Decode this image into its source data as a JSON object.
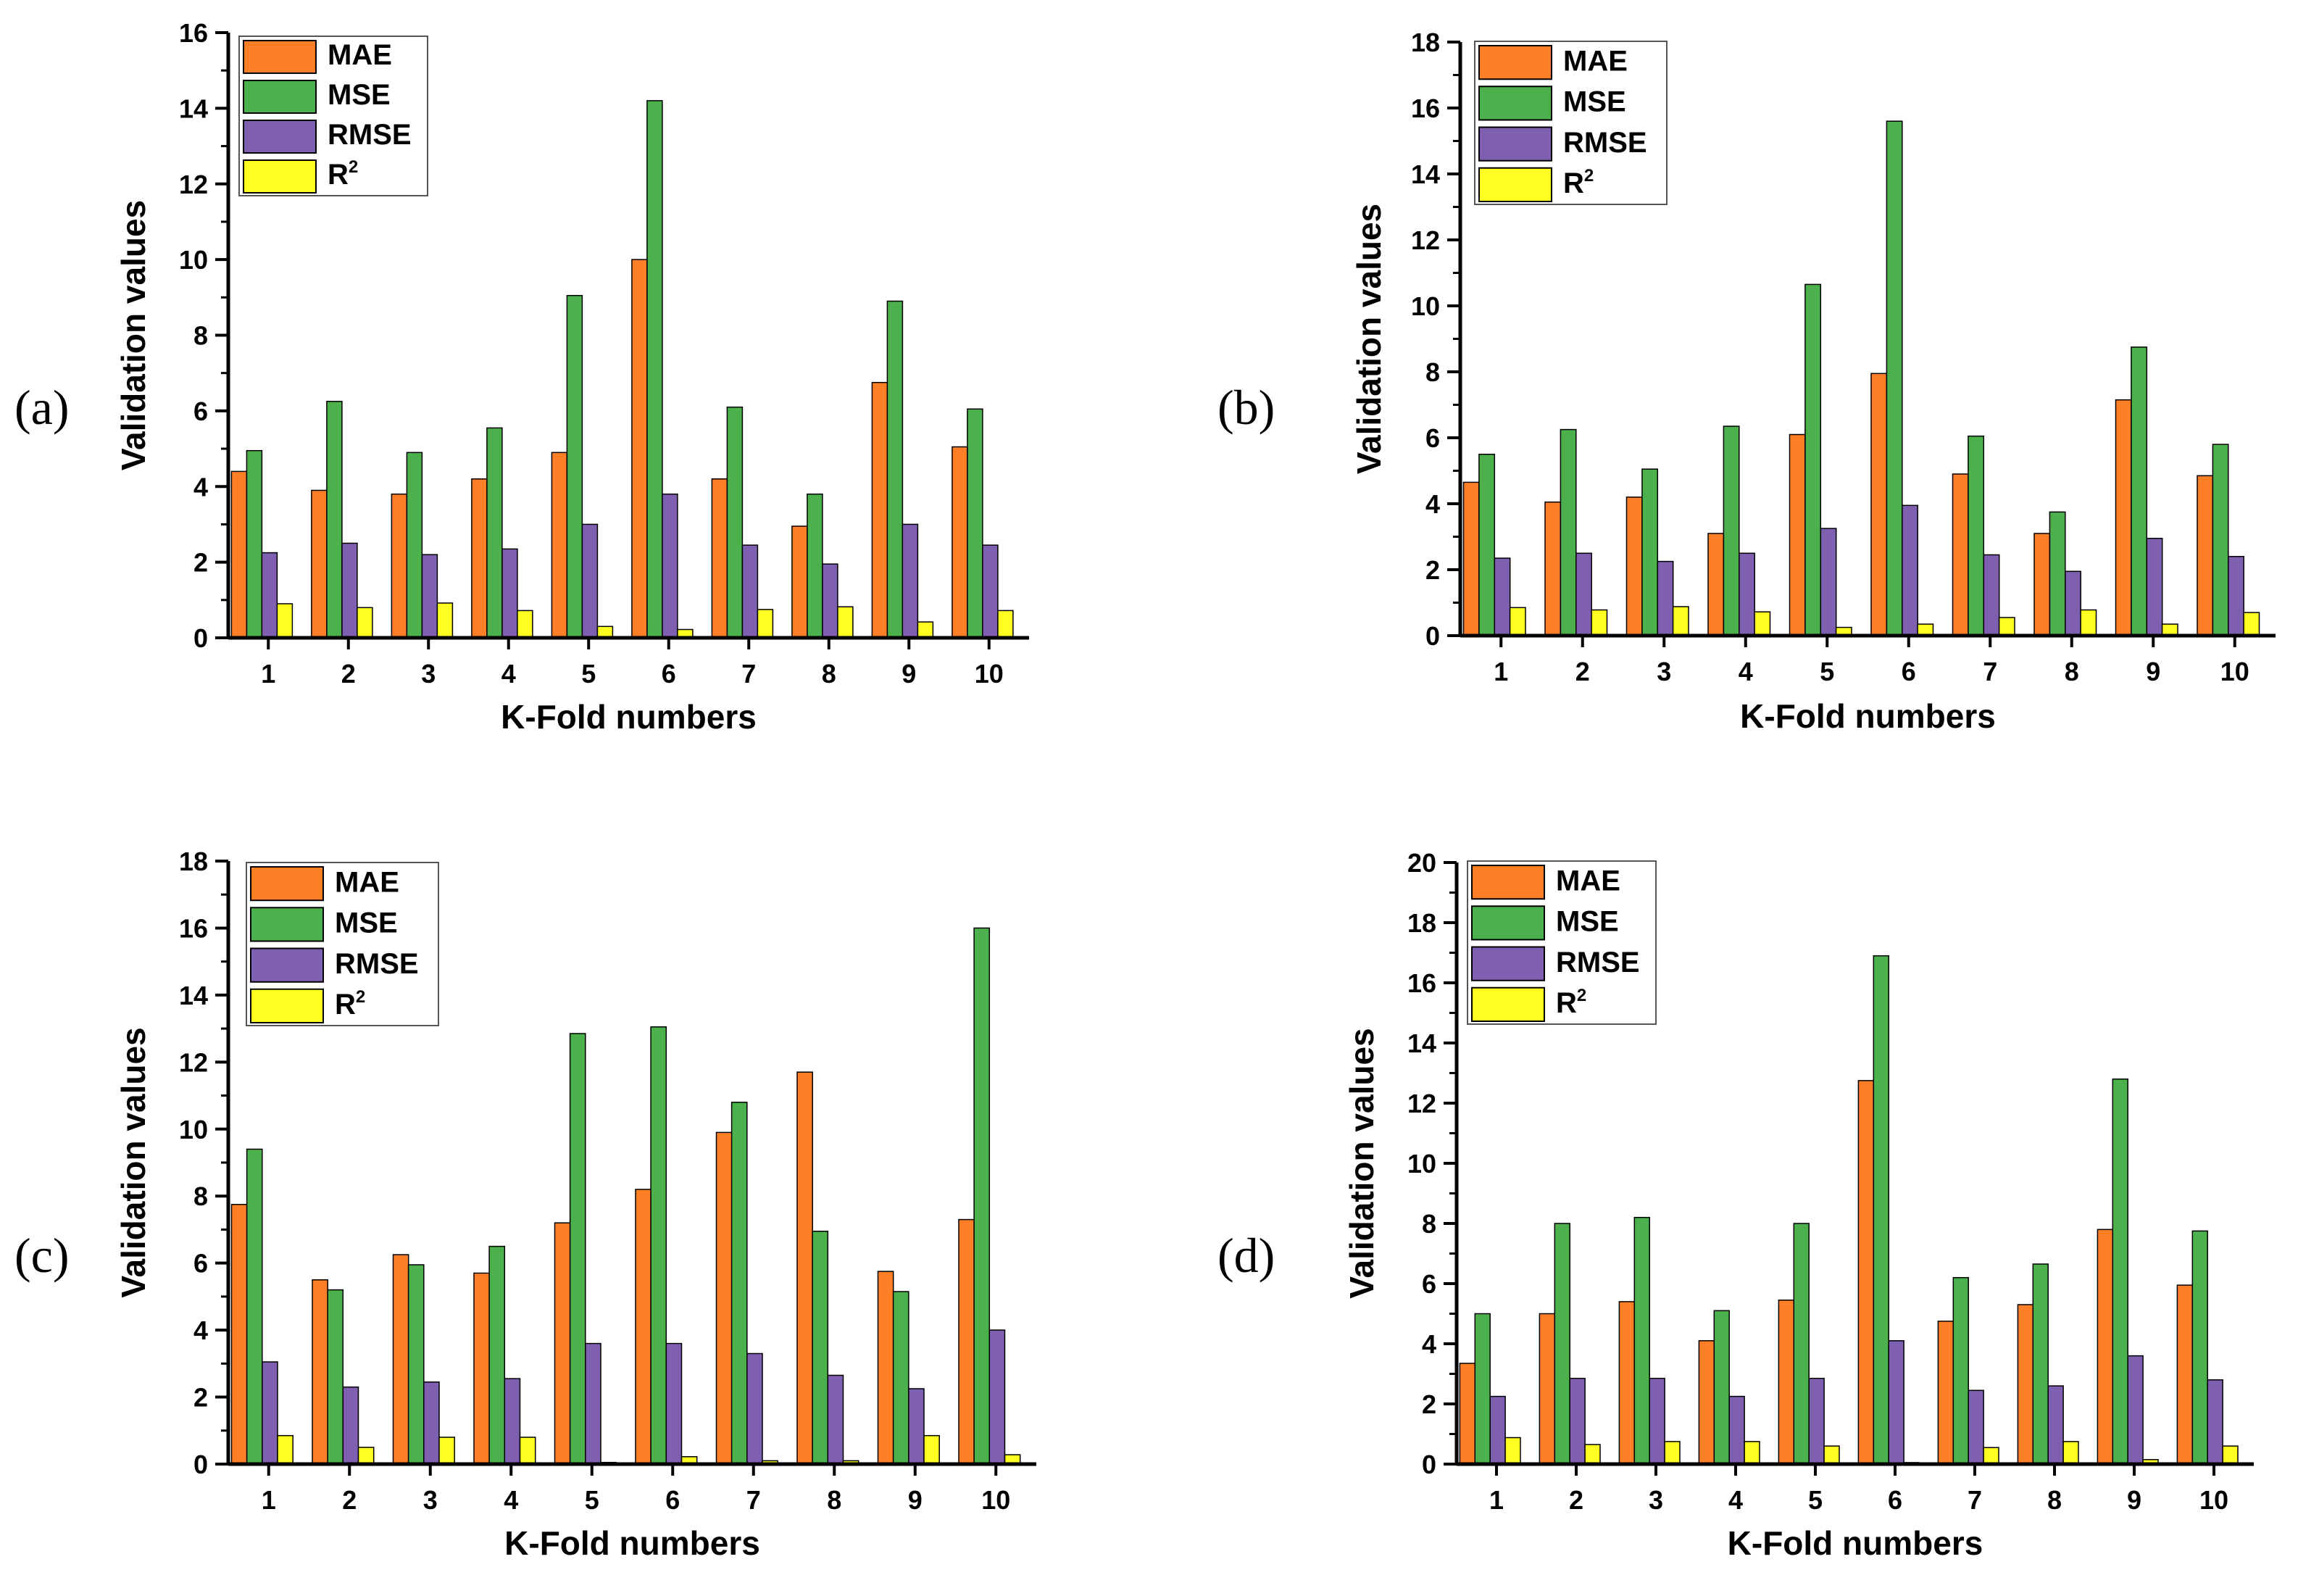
{
  "figure": {
    "series_names": [
      "MAE",
      "MSE",
      "RMSE",
      "R"
    ],
    "series_superscripts": [
      "",
      "",
      "",
      "2"
    ],
    "colors": {
      "MAE": "#ff7f27",
      "MSE": "#4cb04c",
      "RMSE": "#7f5fb0",
      "R2": "#ffff22",
      "axis": "#000000",
      "bar_border": "#000000"
    }
  },
  "chart_data": [
    {
      "panel": "(a)",
      "type": "bar",
      "xlabel": "K-Fold numbers",
      "ylabel": "Validation values",
      "ylim": [
        0,
        16
      ],
      "yticks": [
        0,
        2,
        4,
        6,
        8,
        10,
        12,
        14,
        16
      ],
      "yticklabels": [
        "0",
        "2",
        "4",
        "6",
        "8",
        "10",
        "12",
        "14",
        "16"
      ],
      "categories": [
        "1",
        "2",
        "3",
        "4",
        "5",
        "6",
        "7",
        "8",
        "9",
        "10"
      ],
      "legend": [
        "MAE",
        "MSE",
        "RMSE",
        "R2"
      ],
      "legend_position": "top-left",
      "series": [
        {
          "name": "MAE",
          "values": [
            4.4,
            3.9,
            3.8,
            4.2,
            4.9,
            10.0,
            4.2,
            2.95,
            6.75,
            5.05
          ]
        },
        {
          "name": "MSE",
          "values": [
            4.95,
            6.25,
            4.9,
            5.55,
            9.05,
            14.2,
            6.1,
            3.8,
            8.9,
            6.05
          ]
        },
        {
          "name": "RMSE",
          "values": [
            2.25,
            2.5,
            2.2,
            2.35,
            3.0,
            3.8,
            2.45,
            1.95,
            3.0,
            2.45
          ]
        },
        {
          "name": "R2",
          "values": [
            0.9,
            0.8,
            0.92,
            0.72,
            0.3,
            0.22,
            0.75,
            0.82,
            0.42,
            0.72
          ]
        }
      ]
    },
    {
      "panel": "(b)",
      "type": "bar",
      "xlabel": "K-Fold numbers",
      "ylabel": "Validation values",
      "ylim": [
        0,
        18
      ],
      "yticks": [
        0,
        2,
        4,
        6,
        8,
        10,
        12,
        14,
        16,
        18
      ],
      "yticklabels": [
        "0",
        "2",
        "4",
        "6",
        "8",
        "10",
        "12",
        "14",
        "16",
        "18"
      ],
      "categories": [
        "1",
        "2",
        "3",
        "4",
        "5",
        "6",
        "7",
        "8",
        "9",
        "10"
      ],
      "legend": [
        "MAE",
        "MSE",
        "RMSE",
        "R2"
      ],
      "legend_position": "top-left",
      "series": [
        {
          "name": "MAE",
          "values": [
            4.65,
            4.05,
            4.2,
            3.1,
            6.1,
            7.95,
            4.9,
            3.1,
            7.15,
            4.85
          ]
        },
        {
          "name": "MSE",
          "values": [
            5.5,
            6.25,
            5.05,
            6.35,
            10.65,
            15.6,
            6.05,
            3.75,
            8.75,
            5.8
          ]
        },
        {
          "name": "RMSE",
          "values": [
            2.35,
            2.5,
            2.25,
            2.5,
            3.25,
            3.95,
            2.45,
            1.95,
            2.95,
            2.4
          ]
        },
        {
          "name": "R2",
          "values": [
            0.85,
            0.78,
            0.88,
            0.72,
            0.25,
            0.35,
            0.55,
            0.78,
            0.35,
            0.7
          ]
        }
      ]
    },
    {
      "panel": "(c)",
      "type": "bar",
      "xlabel": "K-Fold numbers",
      "ylabel": "Validation values",
      "ylim": [
        0,
        18
      ],
      "yticks": [
        0,
        2,
        4,
        6,
        8,
        10,
        12,
        14,
        16,
        18
      ],
      "yticklabels": [
        "0",
        "2",
        "4",
        "6",
        "8",
        "10",
        "12",
        "14",
        "16",
        "18"
      ],
      "categories": [
        "1",
        "2",
        "3",
        "4",
        "5",
        "6",
        "7",
        "8",
        "9",
        "10"
      ],
      "legend": [
        "MAE",
        "MSE",
        "RMSE",
        "R2"
      ],
      "legend_position": "top-left",
      "series": [
        {
          "name": "MAE",
          "values": [
            7.75,
            5.5,
            6.25,
            5.7,
            7.2,
            8.2,
            9.9,
            11.7,
            5.75,
            7.3
          ]
        },
        {
          "name": "MSE",
          "values": [
            9.4,
            5.2,
            5.95,
            6.5,
            12.85,
            13.05,
            10.8,
            6.95,
            5.15,
            16.0
          ]
        },
        {
          "name": "RMSE",
          "values": [
            3.05,
            2.3,
            2.45,
            2.55,
            3.6,
            3.6,
            3.3,
            2.65,
            2.25,
            4.0
          ]
        },
        {
          "name": "R2",
          "values": [
            0.85,
            0.5,
            0.8,
            0.8,
            0.05,
            0.22,
            0.1,
            0.1,
            0.85,
            0.28
          ]
        }
      ]
    },
    {
      "panel": "(d)",
      "type": "bar",
      "xlabel": "K-Fold numbers",
      "ylabel": "Validation values",
      "ylim": [
        0,
        20
      ],
      "yticks": [
        0,
        2,
        4,
        6,
        8,
        10,
        12,
        14,
        16,
        18,
        20
      ],
      "yticklabels": [
        "0",
        "2",
        "4",
        "6",
        "8",
        "10",
        "12",
        "14",
        "16",
        "18",
        "20"
      ],
      "categories": [
        "1",
        "2",
        "3",
        "4",
        "5",
        "6",
        "7",
        "8",
        "9",
        "10"
      ],
      "legend": [
        "MAE",
        "MSE",
        "RMSE",
        "R2"
      ],
      "legend_position": "top-left",
      "series": [
        {
          "name": "MAE",
          "values": [
            3.35,
            5.0,
            5.4,
            4.1,
            5.45,
            12.75,
            4.75,
            5.3,
            7.8,
            5.95
          ]
        },
        {
          "name": "MSE",
          "values": [
            5.0,
            8.0,
            8.2,
            5.1,
            8.0,
            16.9,
            6.2,
            6.65,
            12.8,
            7.75
          ]
        },
        {
          "name": "RMSE",
          "values": [
            2.25,
            2.85,
            2.85,
            2.25,
            2.85,
            4.1,
            2.45,
            2.6,
            3.6,
            2.8
          ]
        },
        {
          "name": "R2",
          "values": [
            0.88,
            0.65,
            0.75,
            0.75,
            0.6,
            0.05,
            0.55,
            0.75,
            0.15,
            0.6
          ]
        }
      ]
    }
  ]
}
